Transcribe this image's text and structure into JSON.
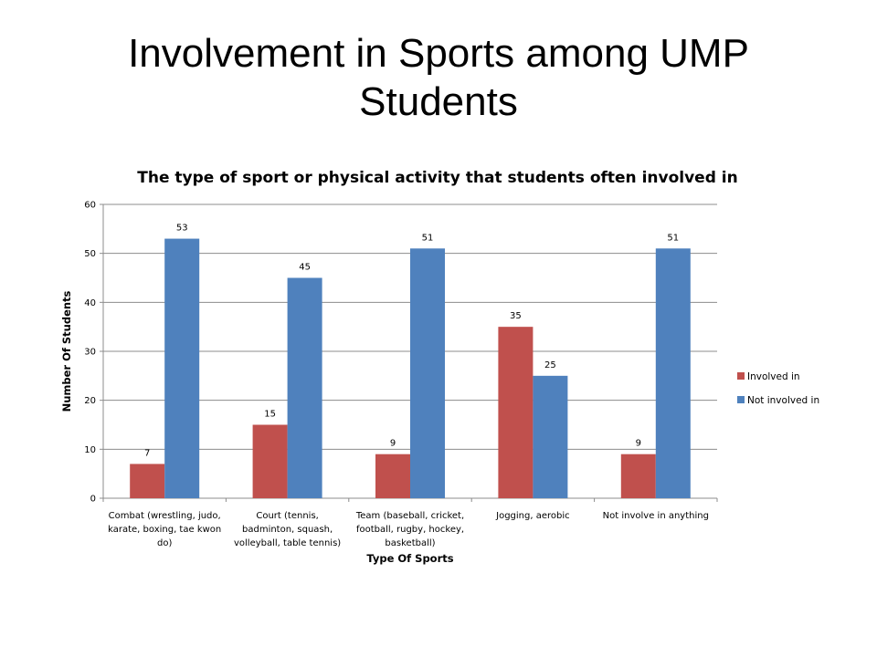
{
  "slide": {
    "title": "Involvement in Sports among UMP Students"
  },
  "chart_data": {
    "type": "bar",
    "title": "The type of sport or physical activity that students often involved in",
    "xlabel": "Type Of Sports",
    "ylabel": "Number Of Students",
    "ylim": [
      0,
      60
    ],
    "yticks": [
      0,
      10,
      20,
      30,
      40,
      50,
      60
    ],
    "grid": true,
    "legend_position": "right",
    "categories": [
      [
        "Combat (wrestling, judo,",
        "karate, boxing, tae kwon",
        "do)"
      ],
      [
        "Court (tennis,",
        "badminton, squash,",
        "volleyball, table tennis)"
      ],
      [
        "Team (baseball, cricket,",
        "football, rugby, hockey,",
        "basketball)"
      ],
      [
        "Jogging, aerobic"
      ],
      [
        "Not involve in anything"
      ]
    ],
    "series": [
      {
        "name": "Involved in",
        "color": "#c0504d",
        "values": [
          7,
          15,
          9,
          35,
          9
        ]
      },
      {
        "name": "Not involved in",
        "color": "#4f81bd",
        "values": [
          53,
          45,
          51,
          25,
          51
        ]
      }
    ]
  }
}
